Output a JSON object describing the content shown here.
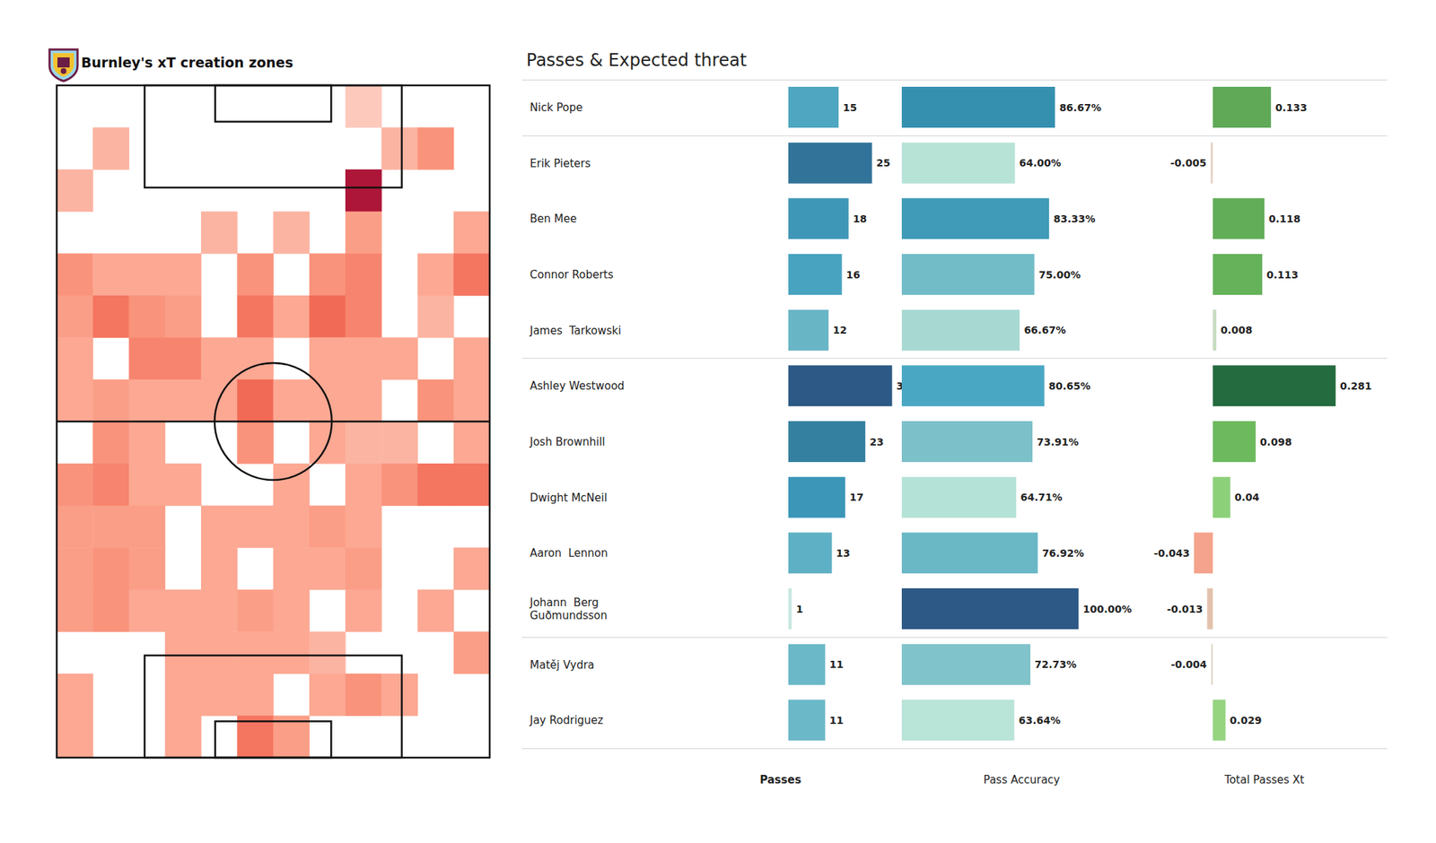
{
  "chart_data": [
    {
      "type": "heatmap",
      "title": "Burnley's xT creation zones",
      "tick_labels": false,
      "cells": [
        [
          0,
          0,
          0,
          0,
          0,
          0,
          0,
          0,
          0.2,
          0,
          0,
          0
        ],
        [
          0,
          0.3,
          0,
          0,
          0,
          0,
          0,
          0,
          0,
          0.3,
          0.45,
          0
        ],
        [
          0.3,
          0,
          0,
          0,
          0,
          0,
          0,
          0,
          1,
          0,
          0,
          0
        ],
        [
          0,
          0,
          0,
          0,
          0.3,
          0,
          0.3,
          0,
          0.4,
          0,
          0,
          0.35
        ],
        [
          0.45,
          0.35,
          0.35,
          0.35,
          0,
          0.45,
          0,
          0.45,
          0.5,
          0,
          0.35,
          0.55
        ],
        [
          0.4,
          0.55,
          0.45,
          0.4,
          0,
          0.55,
          0.35,
          0.6,
          0.5,
          0,
          0.3,
          0
        ],
        [
          0.35,
          0,
          0.5,
          0.5,
          0.35,
          0.35,
          0,
          0.35,
          0.35,
          0.35,
          0,
          0.35
        ],
        [
          0.35,
          0.4,
          0.35,
          0.35,
          0.35,
          0.6,
          0.35,
          0.35,
          0.35,
          0,
          0.45,
          0.35
        ],
        [
          0,
          0.45,
          0.35,
          0,
          0,
          0.45,
          0,
          0.35,
          0.3,
          0.3,
          0,
          0.35
        ],
        [
          0.45,
          0.5,
          0.35,
          0.35,
          0,
          0,
          0.35,
          0,
          0.35,
          0.45,
          0.55,
          0.55
        ],
        [
          0.4,
          0.4,
          0.4,
          0,
          0.35,
          0.35,
          0.35,
          0.4,
          0.35,
          0,
          0,
          0
        ],
        [
          0.4,
          0.45,
          0.4,
          0,
          0.35,
          0,
          0.35,
          0.35,
          0.4,
          0,
          0,
          0.35
        ],
        [
          0.4,
          0.45,
          0.35,
          0.35,
          0.35,
          0.4,
          0.35,
          0,
          0.35,
          0,
          0.35,
          0
        ],
        [
          0,
          0,
          0,
          0.35,
          0.35,
          0.35,
          0.35,
          0.3,
          0,
          0,
          0,
          0.4
        ],
        [
          0.35,
          0,
          0,
          0.35,
          0.35,
          0.35,
          0,
          0.35,
          0.45,
          0.35,
          0,
          0
        ],
        [
          0.35,
          0,
          0,
          0.35,
          0,
          0.55,
          0.4,
          0,
          0,
          0,
          0,
          0
        ]
      ]
    },
    {
      "type": "bar",
      "title": "Passes & Expected threat",
      "orientation": "horizontal",
      "data_labels": true,
      "tick_labels": "y",
      "categories": [
        "Nick Pope",
        "Erik Pieters",
        "Ben Mee",
        "Connor Roberts",
        "James  Tarkowski",
        "Ashley Westwood",
        "Josh Brownhill",
        "Dwight McNeil",
        "Aaron  Lennon",
        "Johann  Berg Guðmundsson",
        "Matěj Vydra",
        "Jay Rodriguez"
      ],
      "series": [
        {
          "name": "Passes",
          "values": [
            15,
            25,
            18,
            16,
            12,
            31,
            23,
            17,
            13,
            1,
            11,
            11
          ],
          "colors": [
            "#4ea6c0",
            "#327399",
            "#3f97b8",
            "#48a3c0",
            "#68b5c6",
            "#2c5985",
            "#3480a0",
            "#3b96b8",
            "#5eb0c4",
            "#c8e8e0",
            "#6bb8c8",
            "#6bb8c8"
          ]
        },
        {
          "name": "Pass Accuracy",
          "values": [
            86.67,
            64,
            83.33,
            75,
            66.67,
            80.65,
            73.91,
            64.71,
            76.92,
            100,
            72.73,
            63.64
          ],
          "value_labels": [
            "86.67%",
            "64.00%",
            "83.33%",
            "75.00%",
            "66.67%",
            "80.65%",
            "73.91%",
            "64.71%",
            "76.92%",
            "100.00%",
            "72.73%",
            "63.64%"
          ],
          "colors": [
            "#3590b0",
            "#b7e3d7",
            "#3f9bb8",
            "#72bcc8",
            "#a7d9d2",
            "#4aa7c4",
            "#7cc0c9",
            "#b5e2d6",
            "#6ab7c6",
            "#2c5985",
            "#80c3ca",
            "#b9e4d8"
          ]
        },
        {
          "name": "Total Passes Xt",
          "values": [
            0.133,
            -0.005,
            0.118,
            0.113,
            0.008,
            0.281,
            0.098,
            0.04,
            -0.043,
            -0.013,
            -0.004,
            0.029
          ],
          "colors": [
            "#5fa957",
            "#e5d4c8",
            "#62ad58",
            "#66b25b",
            "#c8dcc0",
            "#246b3f",
            "#6dba5e",
            "#8dd07a",
            "#f5a38c",
            "#e3c2ac",
            "#e0d8cc",
            "#96d480"
          ]
        }
      ]
    }
  ]
}
